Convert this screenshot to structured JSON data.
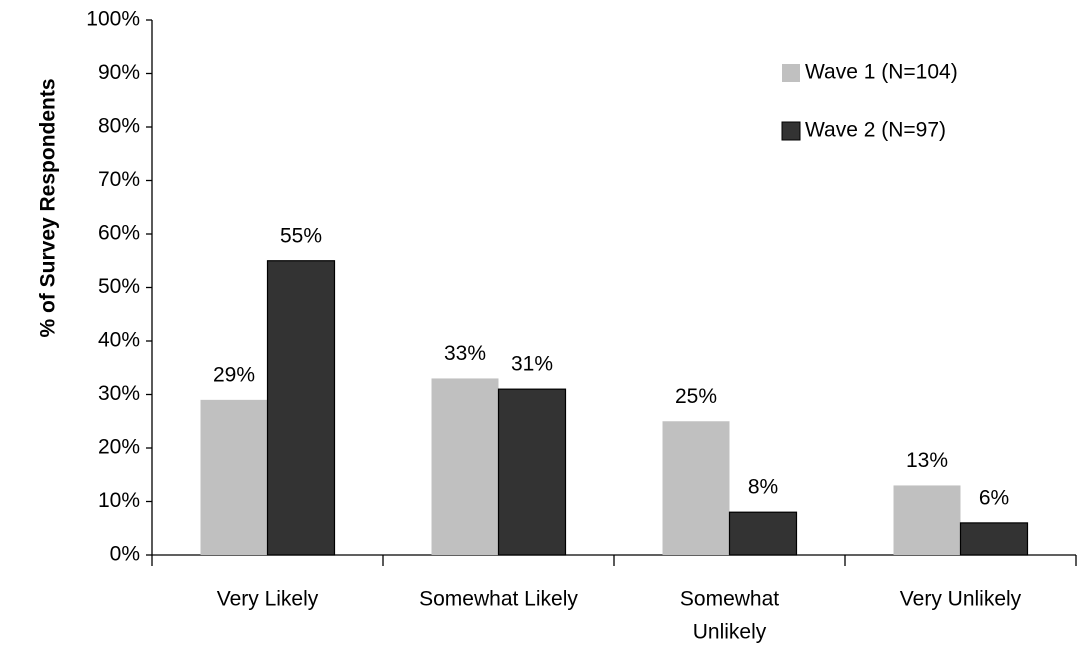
{
  "chart_data": {
    "type": "bar",
    "ylabel": "% of Survey Respondents",
    "xlabel": "",
    "ylim": [
      0,
      100
    ],
    "yticks": [
      "0%",
      "10%",
      "20%",
      "30%",
      "40%",
      "50%",
      "60%",
      "70%",
      "80%",
      "90%",
      "100%"
    ],
    "categories": [
      [
        "Very Likely"
      ],
      [
        "Somewhat Likely"
      ],
      [
        "Somewhat",
        "Unlikely"
      ],
      [
        "Very Unlikely"
      ]
    ],
    "series": [
      {
        "name": "Wave 1 (N=104)",
        "color": "#c0c0c0",
        "values": [
          29,
          33,
          25,
          13
        ],
        "labels": [
          "29%",
          "33%",
          "25%",
          "13%"
        ]
      },
      {
        "name": "Wave 2 (N=97)",
        "color": "#333333",
        "values": [
          55,
          31,
          8,
          6
        ],
        "labels": [
          "55%",
          "31%",
          "8%",
          "6%"
        ]
      }
    ],
    "legend_position": "top-right",
    "grid": false
  }
}
